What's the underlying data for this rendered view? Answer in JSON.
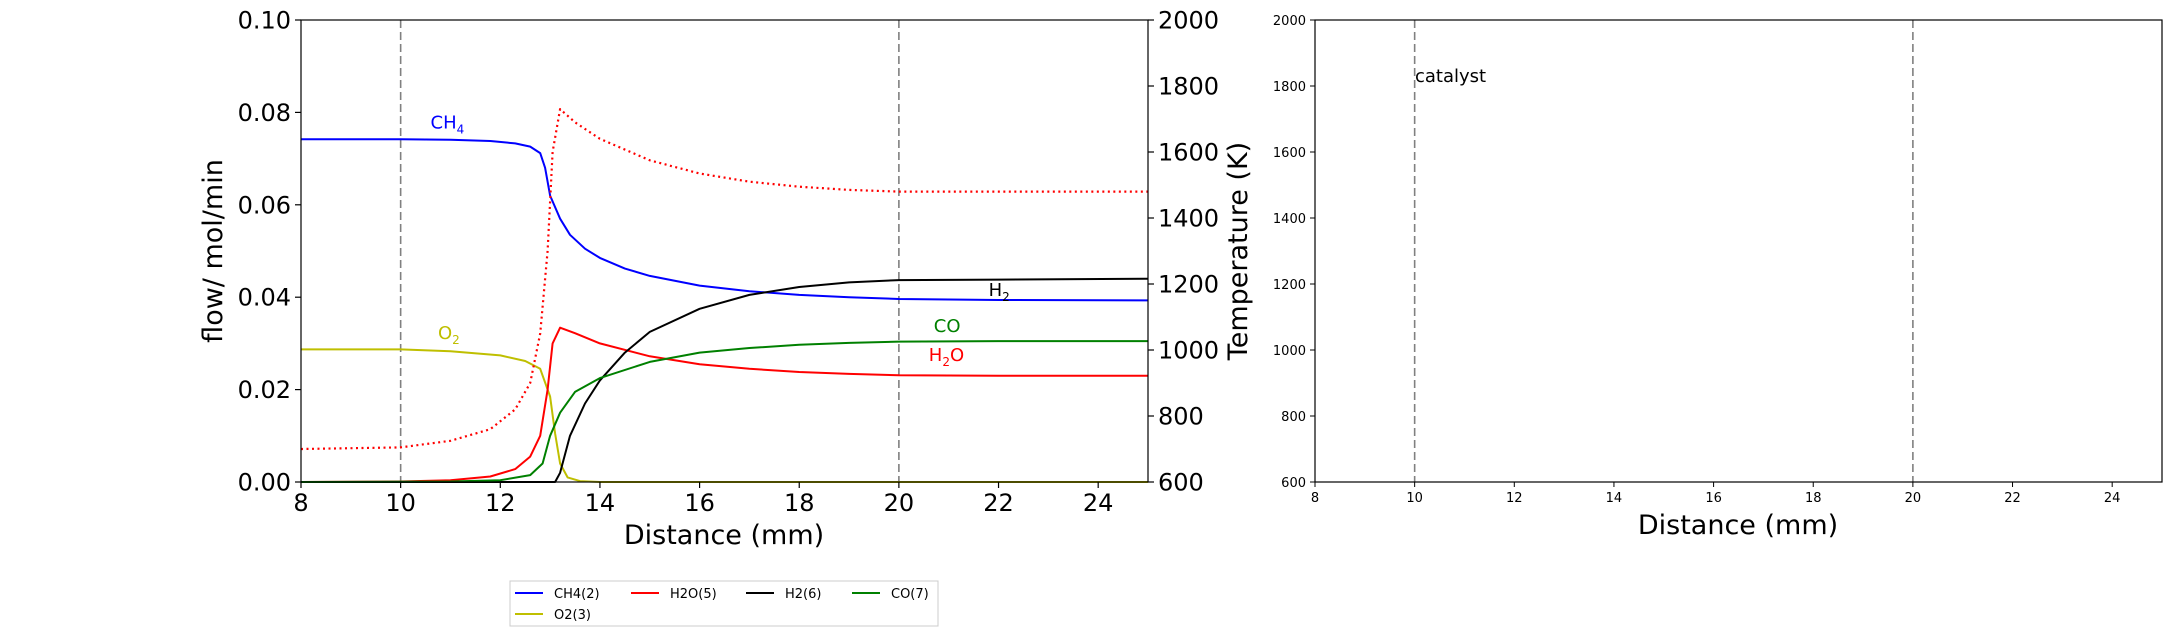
{
  "chart_data": [
    {
      "type": "line",
      "xlabel": "Distance (mm)",
      "ylabel": "flow/ mol/min",
      "y2label": "Temperature (K)",
      "xlim": [
        8,
        25
      ],
      "ylim": [
        0,
        0.1
      ],
      "y2lim": [
        600,
        2000
      ],
      "xticks": [
        "8",
        "10",
        "12",
        "14",
        "16",
        "18",
        "20",
        "22",
        "24"
      ],
      "yticks": [
        "0.00",
        "0.02",
        "0.04",
        "0.06",
        "0.08",
        "0.10"
      ],
      "y2ticks": [
        "600",
        "800",
        "1000",
        "1200",
        "1400",
        "1600",
        "1800",
        "2000"
      ],
      "vlines": [
        10,
        20
      ],
      "grid": false,
      "legend_position": "below",
      "series": [
        {
          "name": "CH4(2)",
          "color": "#0000ff",
          "style": "solid",
          "axis": "left",
          "points": [
            [
              8,
              0.0742
            ],
            [
              10,
              0.0742
            ],
            [
              11,
              0.0741
            ],
            [
              11.8,
              0.0738
            ],
            [
              12.3,
              0.0733
            ],
            [
              12.6,
              0.0726
            ],
            [
              12.8,
              0.0712
            ],
            [
              12.9,
              0.068
            ],
            [
              13.0,
              0.062
            ],
            [
              13.2,
              0.057
            ],
            [
              13.4,
              0.0535
            ],
            [
              13.7,
              0.0505
            ],
            [
              14,
              0.0485
            ],
            [
              14.5,
              0.0462
            ],
            [
              15,
              0.0446
            ],
            [
              16,
              0.0425
            ],
            [
              17,
              0.0413
            ],
            [
              18,
              0.0405
            ],
            [
              19,
              0.04
            ],
            [
              20,
              0.0396
            ],
            [
              22,
              0.0394
            ],
            [
              25,
              0.0393
            ]
          ]
        },
        {
          "name": "O2(3)",
          "color": "#bfbf00",
          "style": "solid",
          "axis": "left",
          "points": [
            [
              8,
              0.0287
            ],
            [
              10,
              0.0287
            ],
            [
              11,
              0.0283
            ],
            [
              12,
              0.0274
            ],
            [
              12.5,
              0.0262
            ],
            [
              12.8,
              0.0245
            ],
            [
              13.0,
              0.0185
            ],
            [
              13.1,
              0.0105
            ],
            [
              13.2,
              0.004
            ],
            [
              13.35,
              0.001
            ],
            [
              13.6,
              0.0002
            ],
            [
              14,
              0.0
            ],
            [
              25,
              0.0
            ]
          ]
        },
        {
          "name": "H2O(5)",
          "color": "#ff0000",
          "style": "solid",
          "axis": "left",
          "points": [
            [
              8,
              0.0
            ],
            [
              10,
              0.0001
            ],
            [
              11,
              0.0004
            ],
            [
              11.8,
              0.0012
            ],
            [
              12.3,
              0.0028
            ],
            [
              12.6,
              0.0055
            ],
            [
              12.8,
              0.01
            ],
            [
              12.95,
              0.02
            ],
            [
              13.05,
              0.03
            ],
            [
              13.2,
              0.0334
            ],
            [
              13.5,
              0.0322
            ],
            [
              14,
              0.03
            ],
            [
              15,
              0.0272
            ],
            [
              16,
              0.0255
            ],
            [
              17,
              0.0245
            ],
            [
              18,
              0.0238
            ],
            [
              19,
              0.0234
            ],
            [
              20,
              0.0231
            ],
            [
              22,
              0.023
            ],
            [
              25,
              0.023
            ]
          ]
        },
        {
          "name": "H2(6)",
          "color": "#000000",
          "style": "solid",
          "axis": "left",
          "points": [
            [
              8,
              0.0
            ],
            [
              13.1,
              0.0
            ],
            [
              13.2,
              0.002
            ],
            [
              13.4,
              0.01
            ],
            [
              13.7,
              0.017
            ],
            [
              14,
              0.022
            ],
            [
              14.5,
              0.028
            ],
            [
              15,
              0.0325
            ],
            [
              16,
              0.0375
            ],
            [
              17,
              0.0405
            ],
            [
              18,
              0.0422
            ],
            [
              19,
              0.0432
            ],
            [
              20,
              0.0437
            ],
            [
              22,
              0.0438
            ],
            [
              25,
              0.044
            ]
          ]
        },
        {
          "name": "CO(7)",
          "color": "#008000",
          "style": "solid",
          "axis": "left",
          "points": [
            [
              8,
              0.0
            ],
            [
              11,
              0.0001
            ],
            [
              12,
              0.0004
            ],
            [
              12.6,
              0.0015
            ],
            [
              12.85,
              0.004
            ],
            [
              13.0,
              0.01
            ],
            [
              13.2,
              0.015
            ],
            [
              13.5,
              0.0195
            ],
            [
              14,
              0.0225
            ],
            [
              15,
              0.026
            ],
            [
              16,
              0.028
            ],
            [
              17,
              0.029
            ],
            [
              18,
              0.0297
            ],
            [
              19,
              0.0301
            ],
            [
              20,
              0.0304
            ],
            [
              22,
              0.0305
            ],
            [
              25,
              0.0305
            ]
          ]
        },
        {
          "name": "",
          "color": "#ff0000",
          "style": "dotted",
          "axis": "right",
          "points": [
            [
              8,
              700
            ],
            [
              10,
              705
            ],
            [
              11,
              725
            ],
            [
              11.8,
              760
            ],
            [
              12.3,
              820
            ],
            [
              12.6,
              900
            ],
            [
              12.8,
              1050
            ],
            [
              12.95,
              1300
            ],
            [
              13.05,
              1600
            ],
            [
              13.2,
              1730
            ],
            [
              13.5,
              1690
            ],
            [
              14,
              1640
            ],
            [
              15,
              1575
            ],
            [
              16,
              1535
            ],
            [
              17,
              1510
            ],
            [
              18,
              1495
            ],
            [
              19,
              1485
            ],
            [
              20,
              1480
            ],
            [
              22,
              1480
            ],
            [
              25,
              1480
            ]
          ]
        }
      ],
      "annotations": [
        {
          "base": "CH",
          "sub": "4",
          "after": "",
          "x": 10.6,
          "y": 0.0765,
          "color": "#0000ff"
        },
        {
          "base": "O",
          "sub": "2",
          "after": "",
          "x": 10.75,
          "y": 0.031,
          "color": "#bfbf00"
        },
        {
          "base": "H",
          "sub": "2",
          "after": "",
          "x": 21.8,
          "y": 0.0403,
          "color": "#000000"
        },
        {
          "base": "CO",
          "sub": "",
          "after": "",
          "x": 20.7,
          "y": 0.0325,
          "color": "#008000"
        },
        {
          "base": "H",
          "sub": "2",
          "after": "O",
          "x": 20.6,
          "y": 0.0262,
          "color": "#ff0000"
        }
      ],
      "legend": [
        {
          "label": "CH4(2)",
          "color": "#0000ff"
        },
        {
          "label": "H2O(5)",
          "color": "#ff0000"
        },
        {
          "label": "H2(6)",
          "color": "#000000"
        },
        {
          "label": "CO(7)",
          "color": "#008000"
        },
        {
          "label": "O2(3)",
          "color": "#bfbf00"
        }
      ]
    },
    {
      "type": "line",
      "xlabel": "Distance (mm)",
      "ylabel": "",
      "xlim": [
        8,
        25
      ],
      "ylim": [
        600,
        2000
      ],
      "xticks": [
        "8",
        "10",
        "12",
        "14",
        "16",
        "18",
        "20",
        "22",
        "24"
      ],
      "yticks": [
        "600",
        "800",
        "1000",
        "1200",
        "1400",
        "1600",
        "1800",
        "2000"
      ],
      "vlines": [
        10,
        20
      ],
      "grid": false,
      "series": [],
      "annotation_text": "catalyst"
    }
  ]
}
